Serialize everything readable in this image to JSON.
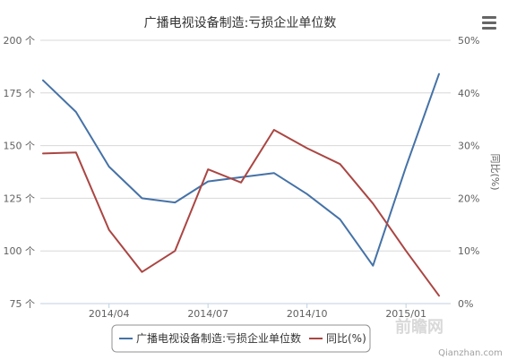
{
  "chart_data": {
    "type": "line",
    "title": "广播电视设备制造:亏损企业单位数",
    "categories": [
      "2014/02",
      "2014/03",
      "2014/04",
      "2014/05",
      "2014/06",
      "2014/07",
      "2014/08",
      "2014/09",
      "2014/10",
      "2014/11",
      "2014/12",
      "2015/01",
      "2015/02"
    ],
    "x_tick_labels": [
      "2014/04",
      "2014/07",
      "2014/10",
      "2015/01"
    ],
    "x_tick_at": [
      "2014/04",
      "2014/07",
      "2014/10",
      "2015/01"
    ],
    "y_left": {
      "min": 75,
      "max": 200,
      "ticks": [
        "200 个",
        "175 个",
        "150 个",
        "125 个",
        "100 个",
        "75 个"
      ],
      "tick_values": [
        200,
        175,
        150,
        125,
        100,
        75
      ]
    },
    "y_right": {
      "min": 0,
      "max": 50,
      "title": "同比(%)",
      "ticks": [
        "50%",
        "40%",
        "30%",
        "20%",
        "10%",
        "0%"
      ],
      "tick_values": [
        50,
        40,
        30,
        20,
        10,
        0
      ]
    },
    "series": [
      {
        "name": "广播电视设备制造:亏损企业单位数",
        "axis": "left",
        "color": "#4572a7",
        "values": [
          181,
          166,
          140,
          125,
          123,
          133,
          135,
          137,
          127,
          115,
          93,
          140,
          184
        ]
      },
      {
        "name": "同比(%)",
        "axis": "right",
        "color": "#aa4643",
        "values": [
          28.5,
          28.7,
          14,
          6,
          10,
          25.5,
          23,
          33,
          29.5,
          26.5,
          19,
          10,
          1.5
        ]
      }
    ],
    "grid": true,
    "legend": "bottom-center"
  },
  "menu": {
    "icon": "hamburger-menu-icon"
  },
  "watermark": {
    "brand": "前瞻网",
    "url": "Qianzhan.com"
  }
}
